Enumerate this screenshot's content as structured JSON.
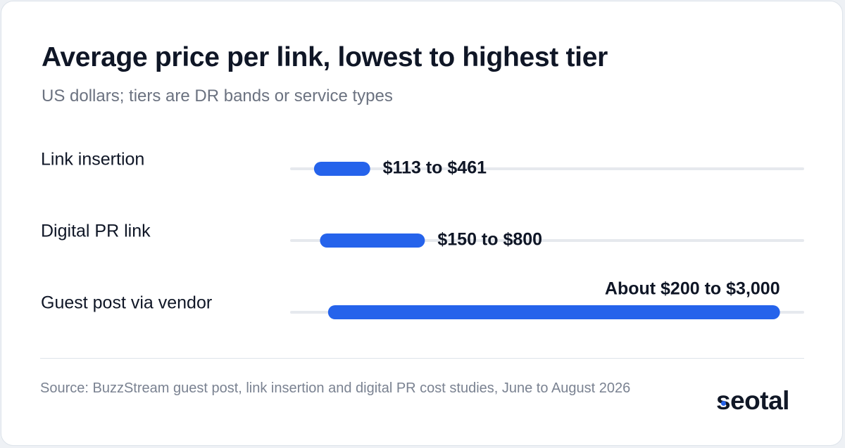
{
  "chart_data": {
    "type": "bar",
    "title": "Average price per link, lowest to highest tier",
    "subtitle": "US dollars; tiers are DR bands or service types",
    "categories": [
      "Link insertion",
      "Digital PR link",
      "Guest post via vendor"
    ],
    "ranges": [
      {
        "low": 113,
        "high": 461,
        "label": "$113 to $461"
      },
      {
        "low": 150,
        "high": 800,
        "label": "$150 to $800"
      },
      {
        "low": 200,
        "high": 3000,
        "label": "About $200 to $3,000"
      }
    ],
    "xlim": [
      0,
      3150
    ],
    "grid": false,
    "legend": "none"
  },
  "footer": {
    "source": "Source: BuzzStream guest post, link insertion and digital PR cost studies, June to August 2026",
    "brand": "seotal"
  },
  "colors": {
    "bar": "#2563eb",
    "track": "#e6e9ee",
    "brand_dot": "#2563eb"
  }
}
